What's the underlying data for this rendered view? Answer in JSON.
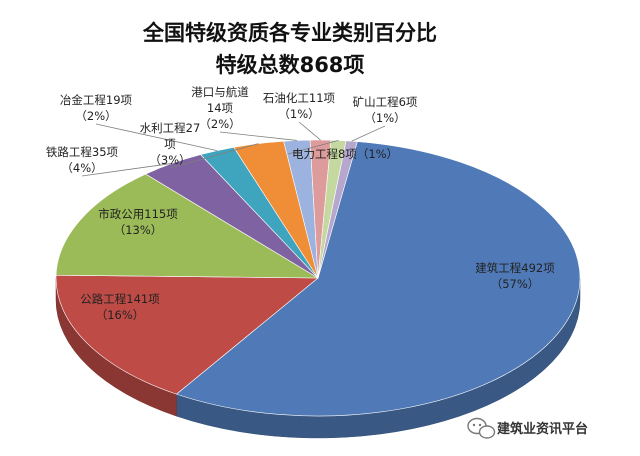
{
  "chart_data": {
    "type": "pie",
    "title": "全国特级资质各专业类别百分比",
    "subtitle": "特级总数868项",
    "slices": [
      {
        "name": "建筑工程",
        "count": 492,
        "count_text": "建筑工程492项",
        "pct_text": "（57%）",
        "percent": 57,
        "color": "#4f7ab7"
      },
      {
        "name": "公路工程",
        "count": 141,
        "count_text": "公路工程141项",
        "pct_text": "（16%）",
        "percent": 16,
        "color": "#bf4b47"
      },
      {
        "name": "市政公用",
        "count": 115,
        "count_text": "市政公用115项",
        "pct_text": "（13%）",
        "percent": 13,
        "color": "#9bbb59"
      },
      {
        "name": "铁路工程",
        "count": 35,
        "count_text": "铁路工程35项",
        "pct_text": "（4%）",
        "percent": 4,
        "color": "#7f62a1"
      },
      {
        "name": "冶金工程",
        "count": 19,
        "count_text": "冶金工程19项",
        "pct_text": "（2%）",
        "percent": 2,
        "color": "#3fa4bd"
      },
      {
        "name": "水利工程",
        "count": 27,
        "count_text": "水利工程27",
        "count_text2": "项",
        "pct_text": "（3%）",
        "percent": 3,
        "color": "#f08d37"
      },
      {
        "name": "港口与航道",
        "count": 14,
        "count_text": "港口与航道",
        "count_text2": "14项",
        "pct_text": "（2%）",
        "percent": 2,
        "color": "#9cb3df"
      },
      {
        "name": "石油化工",
        "count": 11,
        "count_text": "石油化工11项",
        "pct_text": "（1%）",
        "percent": 1,
        "color": "#dd9c9b"
      },
      {
        "name": "电力工程",
        "count": 8,
        "count_text": "电力工程8项",
        "pct_text": "（1%）",
        "percent": 1,
        "color": "#c5d89f"
      },
      {
        "name": "矿山工程",
        "count": 6,
        "count_text": "矿山工程6项",
        "pct_text": "（1%）",
        "percent": 1,
        "color": "#b6a7cf"
      }
    ]
  },
  "watermark": {
    "text": "建筑业资讯平台",
    "icon": "wechat-icon"
  }
}
